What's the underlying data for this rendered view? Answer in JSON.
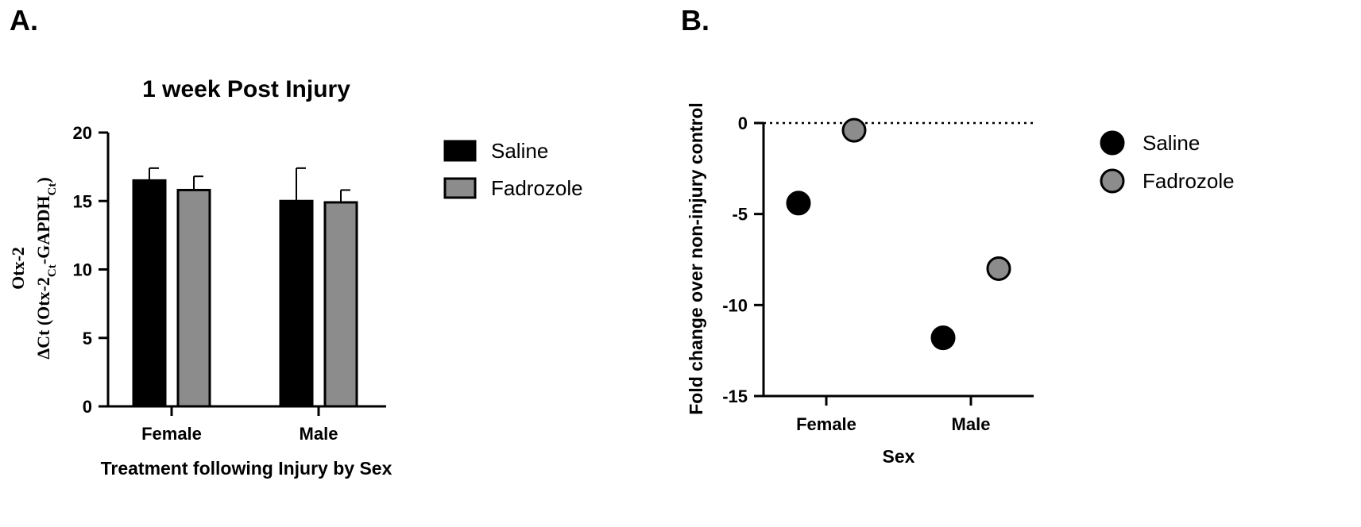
{
  "panel_a_label": "A.",
  "panel_b_label": "B.",
  "chart_data": [
    {
      "type": "bar",
      "title": "1 week Post Injury",
      "ylabel_line1": "Otx-2",
      "ylabel_line2": "ΔCt (Otx-2Ct-GAPDHCt)",
      "xlabel": "Treatment following Injury by Sex",
      "categories": [
        "Female",
        "Male"
      ],
      "ylim": [
        0,
        20
      ],
      "yticks": [
        "0",
        "5",
        "10",
        "15",
        "20"
      ],
      "series": [
        {
          "name": "Saline",
          "color": "#000000",
          "values": [
            16.5,
            15.0
          ],
          "errors": [
            0.9,
            2.4
          ]
        },
        {
          "name": "Fadrozole",
          "color": "#8c8c8c",
          "values": [
            15.8,
            14.9
          ],
          "errors": [
            1.0,
            0.9
          ]
        }
      ],
      "legend_position": "right"
    },
    {
      "type": "scatter",
      "ylabel": "Fold change over non-injury control",
      "xlabel": "Sex",
      "categories": [
        "Female",
        "Male"
      ],
      "ylim": [
        -15,
        0
      ],
      "yticks": [
        "0",
        "-5",
        "-10",
        "-15"
      ],
      "reference_line": 0,
      "series": [
        {
          "name": "Saline",
          "color": "#000000",
          "values": [
            -4.4,
            -11.8
          ]
        },
        {
          "name": "Fadrozole",
          "color": "#8c8c8c",
          "values": [
            -0.4,
            -8.0
          ]
        }
      ],
      "legend_position": "right"
    }
  ]
}
